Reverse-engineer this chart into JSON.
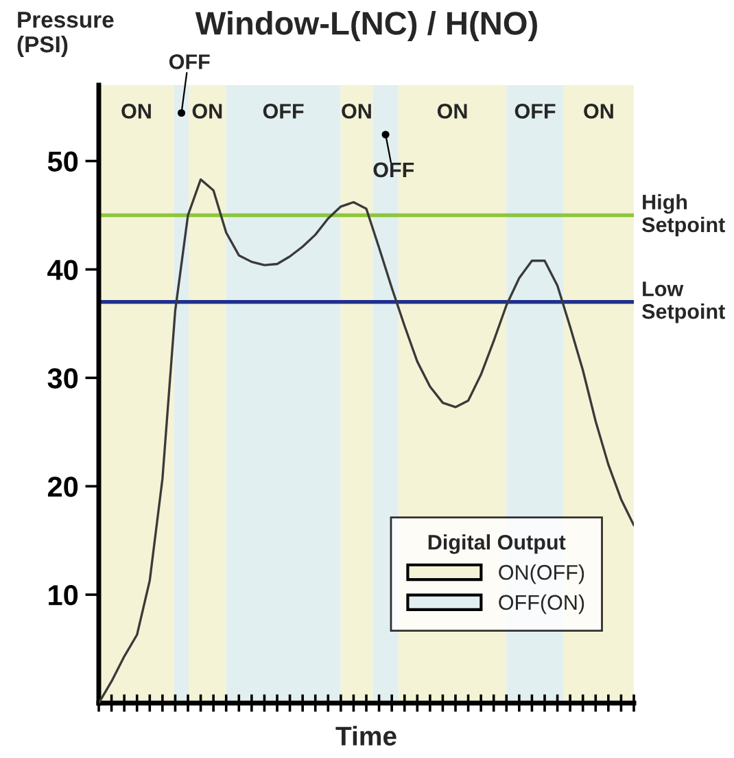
{
  "chart_data": {
    "type": "line",
    "title": "Window-L(NC) / H(NO)",
    "xlabel": "Time",
    "ylabel": "Pressure\n(PSI)",
    "ylim": [
      0,
      57
    ],
    "yticks": [
      10,
      20,
      30,
      40,
      50
    ],
    "grid": false,
    "legend": "bottom right",
    "legend_title": "Digital Output",
    "categories": [
      null,
      null,
      null,
      null,
      null,
      null,
      null,
      null,
      null,
      null,
      null,
      null,
      null,
      null,
      null,
      null,
      null,
      null,
      null,
      null,
      null,
      null,
      null,
      null,
      null,
      null,
      null,
      null,
      null,
      null,
      null,
      null,
      null,
      null,
      null,
      null,
      null,
      null,
      null,
      null,
      null,
      null,
      null
    ],
    "series": [
      {
        "color": "#3a3a3a",
        "values": [
          0,
          2.0,
          4.3,
          6.3,
          11.3,
          20.7,
          36.2,
          45,
          48.3,
          47.3,
          43.4,
          41.3,
          40.7,
          40.4,
          40.5,
          41.2,
          42.1,
          43.2,
          44.7,
          45.8,
          46.2,
          45.6,
          42,
          38.3,
          34.8,
          31.5,
          29.2,
          27.7,
          27.3,
          27.9,
          30.3,
          33.4,
          36.7,
          39.2,
          40.8,
          40.8,
          38.5,
          34.7,
          30.7,
          26,
          22,
          18.8,
          16.4
        ]
      },
      {
        "type": "area",
        "name": "ON(OFF)",
        "color": "#f5f3d6",
        "values": [
          null,
          null,
          null,
          null,
          null,
          null,
          null,
          null,
          null,
          null,
          null,
          null,
          null,
          null,
          null,
          null,
          null,
          null,
          null,
          null,
          null,
          null,
          null,
          null,
          null,
          null,
          null,
          null,
          null,
          null,
          null,
          null,
          null,
          null,
          null,
          null,
          null,
          null,
          null,
          null,
          null,
          null,
          null
        ]
      },
      {
        "type": "area",
        "name": "OFF(ON)",
        "color": "#e2eff0",
        "values": [
          null,
          null,
          null,
          null,
          null,
          null,
          null,
          null,
          null,
          null,
          null,
          null,
          null,
          null,
          null,
          null,
          null,
          null,
          null,
          null,
          null,
          null,
          null,
          null,
          null,
          null,
          null,
          null,
          null,
          null,
          null,
          null,
          null,
          null,
          null,
          null,
          null,
          null,
          null,
          null,
          null,
          null,
          null
        ]
      }
    ],
    "annotations": [
      "ON",
      "OFF",
      "ON",
      "OFF",
      "ON",
      "OFF",
      "ON",
      "OFF",
      "ON"
    ],
    "ref_lines": [
      {
        "axis": "y",
        "value": 45,
        "label": "High\nSetpoint",
        "color": "#8dc63f"
      },
      {
        "axis": "y",
        "value": 37,
        "label": "Low\nSetpoint",
        "color": "#1f2f8f"
      }
    ]
  }
}
